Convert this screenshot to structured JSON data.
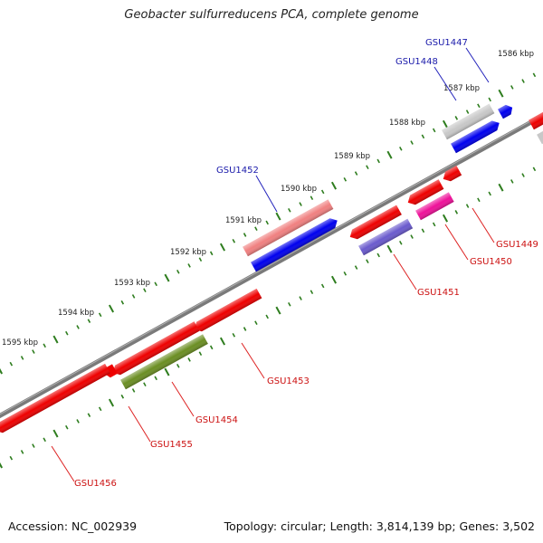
{
  "title": "Geobacter sulfurreducens PCA, complete genome",
  "footer": {
    "accession": "Accession: NC_002939",
    "summary": "Topology: circular; Length: 3,814,139 bp; Genes: 3,502"
  },
  "colors": {
    "backbone": "#808080",
    "tick": "#2e7d1e",
    "label_forward": "#1a1aaa",
    "label_reverse": "#cc1111",
    "leader_forward": "#2222bb",
    "leader_reverse": "#dd2222"
  },
  "scale_labels": [
    {
      "id": "1586",
      "text": "1586 kbp"
    },
    {
      "id": "1587",
      "text": "1587 kbp"
    },
    {
      "id": "1588",
      "text": "1588 kbp"
    },
    {
      "id": "1589",
      "text": "1589 kbp"
    },
    {
      "id": "1590",
      "text": "1590 kbp"
    },
    {
      "id": "1591",
      "text": "1591 kbp"
    },
    {
      "id": "1592",
      "text": "1592 kbp"
    },
    {
      "id": "1593",
      "text": "1593 kbp"
    },
    {
      "id": "1594",
      "text": "1594 kbp"
    },
    {
      "id": "1595",
      "text": "1595 kbp"
    }
  ],
  "genes": [
    {
      "id": "GSU1447",
      "label": "GSU1447",
      "strand": "+",
      "color": "#c8c8c8"
    },
    {
      "id": "GSU1448",
      "label": "GSU1448",
      "strand": "+",
      "color": "#0000ee"
    },
    {
      "id": "GSU1449",
      "label": "GSU1449",
      "strand": "-",
      "color": "#ee0000"
    },
    {
      "id": "GSU1450",
      "label": "GSU1450",
      "strand": "-",
      "color": "#ee1199"
    },
    {
      "id": "GSU1451",
      "label": "GSU1451",
      "strand": "-",
      "color": "#6a5acd"
    },
    {
      "id": "GSU1452",
      "label": "GSU1452",
      "strand": "+",
      "color": "#f08080"
    },
    {
      "id": "GSU1453",
      "label": "GSU1453",
      "strand": "-",
      "color": "#ee0000"
    },
    {
      "id": "GSU1454",
      "label": "GSU1454",
      "strand": "-",
      "color": "#6b8e23"
    },
    {
      "id": "GSU1455",
      "label": "GSU1455",
      "strand": "-",
      "color": "#ee0000"
    },
    {
      "id": "GSU1456",
      "label": "GSU1456",
      "strand": "-",
      "color": "#ee0000"
    }
  ]
}
